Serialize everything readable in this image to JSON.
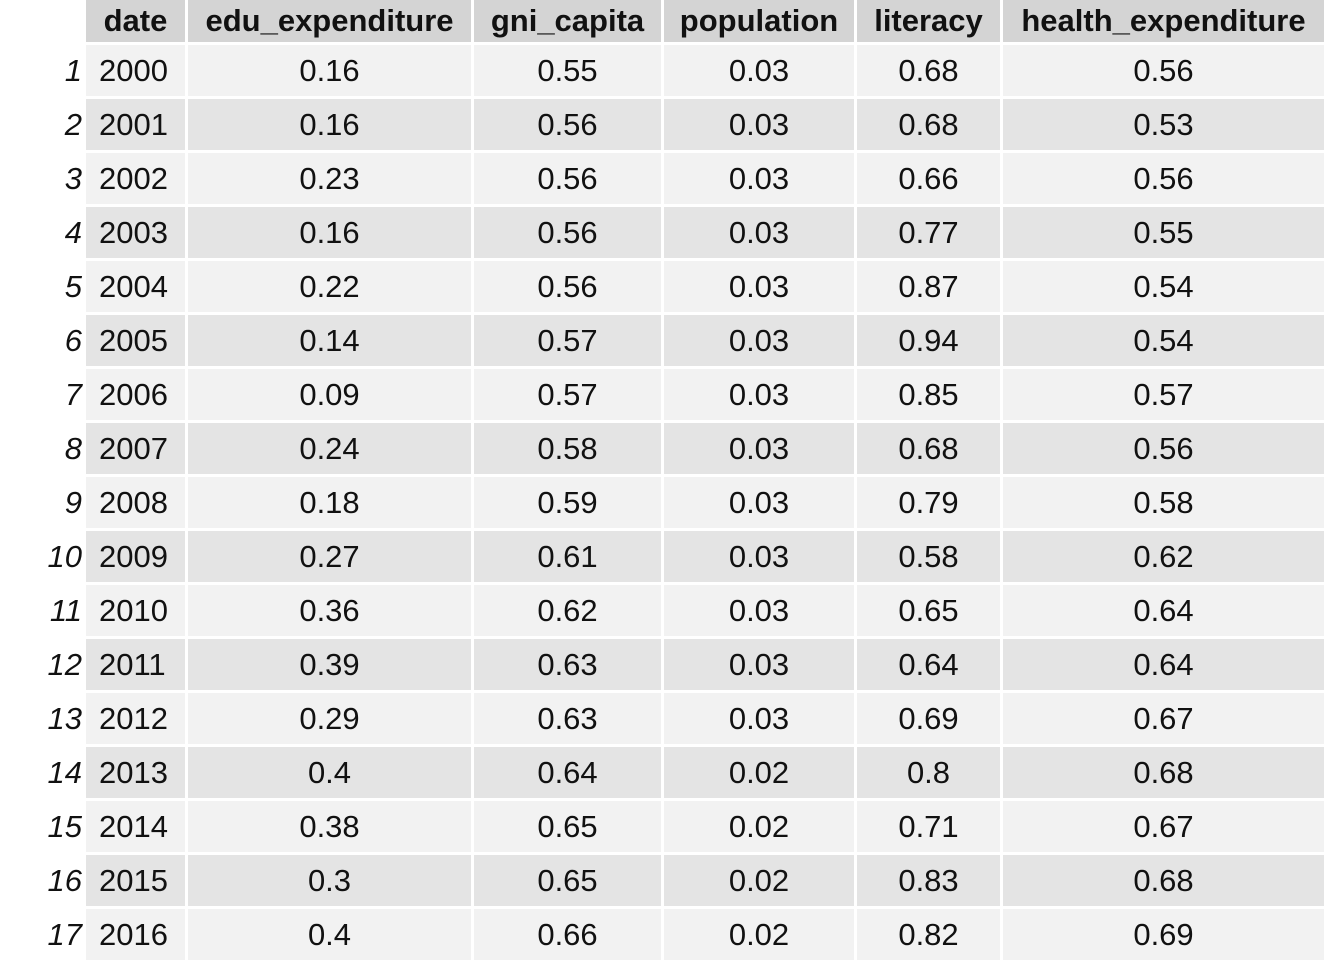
{
  "chart_data": {
    "type": "table",
    "columns": [
      "date",
      "edu_expenditure",
      "gni_capita",
      "population",
      "literacy",
      "health_expenditure"
    ],
    "row_names": [
      "1",
      "2",
      "3",
      "4",
      "5",
      "6",
      "7",
      "8",
      "9",
      "10",
      "11",
      "12",
      "13",
      "14",
      "15",
      "16",
      "17"
    ],
    "rows": [
      [
        "2000",
        "0.16",
        "0.55",
        "0.03",
        "0.68",
        "0.56"
      ],
      [
        "2001",
        "0.16",
        "0.56",
        "0.03",
        "0.68",
        "0.53"
      ],
      [
        "2002",
        "0.23",
        "0.56",
        "0.03",
        "0.66",
        "0.56"
      ],
      [
        "2003",
        "0.16",
        "0.56",
        "0.03",
        "0.77",
        "0.55"
      ],
      [
        "2004",
        "0.22",
        "0.56",
        "0.03",
        "0.87",
        "0.54"
      ],
      [
        "2005",
        "0.14",
        "0.57",
        "0.03",
        "0.94",
        "0.54"
      ],
      [
        "2006",
        "0.09",
        "0.57",
        "0.03",
        "0.85",
        "0.57"
      ],
      [
        "2007",
        "0.24",
        "0.58",
        "0.03",
        "0.68",
        "0.56"
      ],
      [
        "2008",
        "0.18",
        "0.59",
        "0.03",
        "0.79",
        "0.58"
      ],
      [
        "2009",
        "0.27",
        "0.61",
        "0.03",
        "0.58",
        "0.62"
      ],
      [
        "2010",
        "0.36",
        "0.62",
        "0.03",
        "0.65",
        "0.64"
      ],
      [
        "2011",
        "0.39",
        "0.63",
        "0.03",
        "0.64",
        "0.64"
      ],
      [
        "2012",
        "0.29",
        "0.63",
        "0.03",
        "0.69",
        "0.67"
      ],
      [
        "2013",
        "0.4",
        "0.64",
        "0.02",
        "0.8",
        "0.68"
      ],
      [
        "2014",
        "0.38",
        "0.65",
        "0.02",
        "0.71",
        "0.67"
      ],
      [
        "2015",
        "0.3",
        "0.65",
        "0.02",
        "0.83",
        "0.68"
      ],
      [
        "2016",
        "0.4",
        "0.66",
        "0.02",
        "0.82",
        "0.69"
      ]
    ]
  }
}
